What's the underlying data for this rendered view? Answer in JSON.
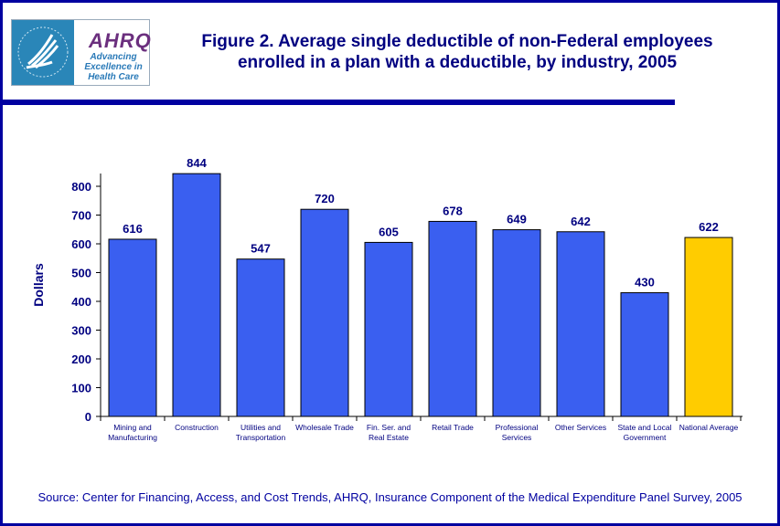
{
  "header": {
    "logo_text": "AHRQ",
    "logo_tagline": [
      "Advancing",
      "Excellence in",
      "Health Care"
    ],
    "seal_text": "DEPARTMENT OF HEALTH & HUMAN SERVICES USA",
    "title_line1": "Figure 2. Average single deductible of non-Federal employees",
    "title_line2": "enrolled in a plan with a deductible, by industry, 2005"
  },
  "chart_data": {
    "type": "bar",
    "title": "Figure 2. Average single deductible of non-Federal employees enrolled in a plan with a deductible, by industry, 2005",
    "xlabel": "",
    "ylabel": "Dollars",
    "ylim": [
      0,
      800
    ],
    "yticks": [
      0,
      100,
      200,
      300,
      400,
      500,
      600,
      700,
      800
    ],
    "categories": [
      [
        "Mining and",
        "Manufacturing"
      ],
      [
        "Construction"
      ],
      [
        "Utilities and",
        "Transportation"
      ],
      [
        "Wholesale Trade"
      ],
      [
        "Fin. Ser. and",
        "Real Estate"
      ],
      [
        "Retail Trade"
      ],
      [
        "Professional",
        "Services"
      ],
      [
        "Other Services"
      ],
      [
        "State and Local",
        "Government"
      ],
      [
        "National Average"
      ]
    ],
    "values": [
      616,
      844,
      547,
      720,
      605,
      678,
      649,
      642,
      430,
      622
    ],
    "colors": [
      "#3a5ff0",
      "#3a5ff0",
      "#3a5ff0",
      "#3a5ff0",
      "#3a5ff0",
      "#3a5ff0",
      "#3a5ff0",
      "#3a5ff0",
      "#3a5ff0",
      "#ffcc00"
    ],
    "grid": false,
    "legend": "none"
  },
  "footer": {
    "source": "Source: Center for Financing, Access, and Cost Trends, AHRQ, Insurance Component of the Medical Expenditure Panel Survey, 2005"
  }
}
